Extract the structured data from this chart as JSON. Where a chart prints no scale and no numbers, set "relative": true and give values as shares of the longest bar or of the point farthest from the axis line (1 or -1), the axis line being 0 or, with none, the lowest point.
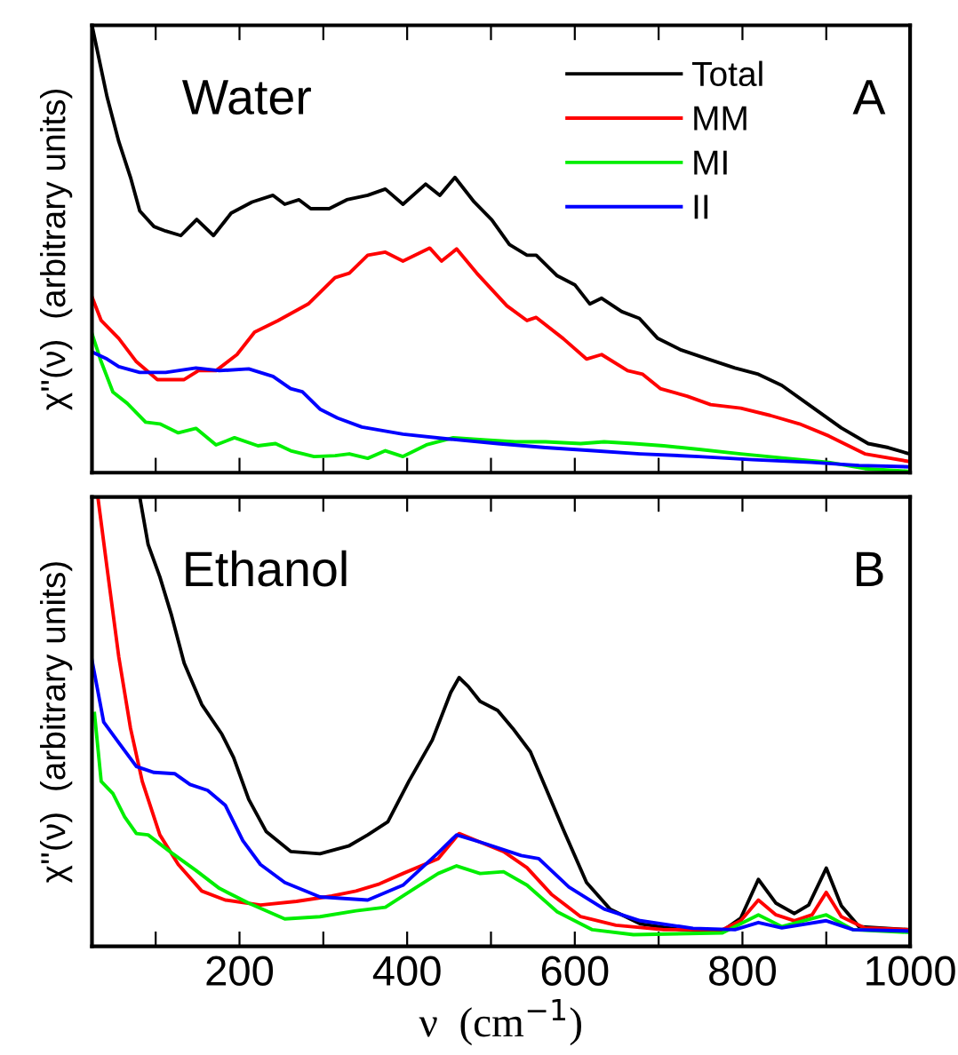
{
  "chart_data": [
    {
      "type": "line",
      "relative": true,
      "ylabel": "χ''(ν)  (arbitrary units)",
      "annotations": [
        "Water",
        "A"
      ],
      "legend": "top right",
      "tick_labels": false,
      "xlim": [
        24,
        1000
      ],
      "xticks": [
        {
          "value": 100,
          "label": null
        },
        {
          "value": 200,
          "label": null
        },
        {
          "value": 300,
          "label": null
        },
        {
          "value": 400,
          "label": null
        },
        {
          "value": 500,
          "label": null
        },
        {
          "value": 600,
          "label": null
        },
        {
          "value": 700,
          "label": null
        },
        {
          "value": 800,
          "label": null
        },
        {
          "value": 900,
          "label": null
        },
        {
          "value": 1000,
          "label": null
        }
      ],
      "series": [
        {
          "name": "Total",
          "color": "#000000",
          "x": [
            24,
            42,
            56,
            70,
            81,
            98,
            112,
            130,
            149,
            169,
            190,
            215,
            240,
            254,
            271,
            285,
            307,
            328,
            353,
            374,
            395,
            422,
            439,
            457,
            480,
            501,
            522,
            543,
            554,
            579,
            600,
            618,
            632,
            656,
            677,
            699,
            727,
            759,
            791,
            819,
            847,
            882,
            918,
            950,
            974,
            999
          ],
          "values": [
            1.0,
            0.84,
            0.74,
            0.66,
            0.585,
            0.55,
            0.54,
            0.53,
            0.566,
            0.53,
            0.58,
            0.605,
            0.62,
            0.6,
            0.61,
            0.59,
            0.59,
            0.61,
            0.62,
            0.634,
            0.6,
            0.645,
            0.62,
            0.66,
            0.605,
            0.565,
            0.51,
            0.486,
            0.486,
            0.44,
            0.42,
            0.377,
            0.39,
            0.36,
            0.345,
            0.3,
            0.274,
            0.254,
            0.234,
            0.22,
            0.195,
            0.148,
            0.1,
            0.065,
            0.056,
            0.042
          ]
        },
        {
          "name": "MM",
          "color": "#ff0000",
          "x": [
            24,
            35,
            56,
            77,
            102,
            134,
            151,
            172,
            197,
            218,
            246,
            282,
            314,
            331,
            353,
            374,
            395,
            427,
            441,
            459,
            483,
            519,
            543,
            554,
            586,
            614,
            632,
            663,
            681,
            702,
            734,
            762,
            798,
            833,
            868,
            903,
            946,
            999
          ],
          "values": [
            0.393,
            0.34,
            0.3,
            0.248,
            0.208,
            0.208,
            0.228,
            0.228,
            0.264,
            0.314,
            0.34,
            0.377,
            0.436,
            0.446,
            0.486,
            0.493,
            0.473,
            0.502,
            0.473,
            0.5,
            0.446,
            0.373,
            0.34,
            0.347,
            0.3,
            0.254,
            0.264,
            0.228,
            0.22,
            0.188,
            0.171,
            0.152,
            0.144,
            0.128,
            0.109,
            0.082,
            0.042,
            0.025
          ]
        },
        {
          "name": "MI",
          "color": "#00ee00",
          "x": [
            24,
            35,
            49,
            66,
            88,
            105,
            127,
            148,
            172,
            194,
            222,
            243,
            261,
            289,
            314,
            331,
            353,
            374,
            395,
            423,
            455,
            494,
            529,
            565,
            607,
            635,
            670,
            706,
            748,
            798,
            847,
            903,
            946,
            999
          ],
          "values": [
            0.311,
            0.248,
            0.18,
            0.155,
            0.113,
            0.109,
            0.089,
            0.099,
            0.062,
            0.078,
            0.06,
            0.065,
            0.049,
            0.036,
            0.038,
            0.042,
            0.032,
            0.049,
            0.036,
            0.062,
            0.078,
            0.073,
            0.069,
            0.069,
            0.065,
            0.069,
            0.065,
            0.06,
            0.052,
            0.042,
            0.033,
            0.023,
            0.009,
            0.003
          ]
        },
        {
          "name": "II",
          "color": "#0000ff",
          "x": [
            24,
            42,
            56,
            81,
            112,
            148,
            176,
            211,
            240,
            261,
            275,
            296,
            317,
            346,
            395,
            451,
            508,
            565,
            622,
            678,
            748,
            812,
            882,
            939,
            999
          ],
          "values": [
            0.27,
            0.254,
            0.237,
            0.224,
            0.224,
            0.234,
            0.228,
            0.232,
            0.215,
            0.188,
            0.181,
            0.142,
            0.122,
            0.102,
            0.086,
            0.075,
            0.065,
            0.056,
            0.049,
            0.042,
            0.036,
            0.029,
            0.023,
            0.016,
            0.013
          ]
        }
      ]
    },
    {
      "type": "line",
      "relative": true,
      "ylabel": "χ''(ν)  (arbitrary units)",
      "xlabel": "ν  (cm$^{−1}$)",
      "annotations": [
        "Ethanol",
        "B"
      ],
      "tick_labels": "x",
      "xlim": [
        24,
        1000
      ],
      "xticks": [
        {
          "value": 100,
          "label": null
        },
        200,
        {
          "value": 300,
          "label": null
        },
        400,
        {
          "value": 500,
          "label": null
        },
        600,
        {
          "value": 700,
          "label": null
        },
        800,
        {
          "value": 900,
          "label": null
        },
        1000
      ],
      "series": [
        {
          "color": "#000000",
          "x": [
            81,
            91,
            105,
            119,
            134,
            155,
            179,
            193,
            211,
            232,
            261,
            296,
            331,
            353,
            377,
            402,
            430,
            452,
            462,
            473,
            487,
            508,
            526,
            547,
            565,
            586,
            614,
            642,
            678,
            727,
            776,
            798,
            819,
            840,
            862,
            879,
            900,
            918,
            939,
            999
          ],
          "values": [
            1.0,
            0.894,
            0.822,
            0.736,
            0.63,
            0.538,
            0.472,
            0.42,
            0.327,
            0.255,
            0.211,
            0.206,
            0.224,
            0.248,
            0.277,
            0.367,
            0.459,
            0.565,
            0.598,
            0.578,
            0.545,
            0.525,
            0.485,
            0.433,
            0.354,
            0.261,
            0.142,
            0.083,
            0.05,
            0.037,
            0.034,
            0.063,
            0.149,
            0.096,
            0.073,
            0.092,
            0.174,
            0.09,
            0.044,
            0.037
          ]
        },
        {
          "color": "#ff0000",
          "x": [
            31,
            42,
            56,
            70,
            84,
            105,
            127,
            155,
            183,
            225,
            268,
            310,
            339,
            367,
            395,
            437,
            462,
            487,
            515,
            543,
            572,
            607,
            649,
            706,
            776,
            798,
            819,
            840,
            862,
            883,
            900,
            918,
            946,
            999
          ],
          "values": [
            1.0,
            0.842,
            0.644,
            0.485,
            0.367,
            0.248,
            0.182,
            0.123,
            0.103,
            0.092,
            0.1,
            0.112,
            0.123,
            0.139,
            0.162,
            0.195,
            0.251,
            0.232,
            0.211,
            0.175,
            0.116,
            0.066,
            0.047,
            0.037,
            0.037,
            0.057,
            0.103,
            0.07,
            0.057,
            0.07,
            0.12,
            0.066,
            0.041,
            0.037
          ]
        },
        {
          "color": "#00ee00",
          "x": [
            27,
            35,
            49,
            63,
            77,
            91,
            119,
            148,
            176,
            211,
            254,
            296,
            339,
            374,
            409,
            437,
            459,
            487,
            515,
            543,
            579,
            621,
            670,
            776,
            819,
            847,
            900,
            932,
            999
          ],
          "values": [
            0.518,
            0.367,
            0.34,
            0.288,
            0.251,
            0.248,
            0.208,
            0.169,
            0.129,
            0.096,
            0.061,
            0.066,
            0.079,
            0.087,
            0.129,
            0.162,
            0.179,
            0.162,
            0.166,
            0.136,
            0.077,
            0.037,
            0.026,
            0.03,
            0.07,
            0.044,
            0.07,
            0.037,
            0.031
          ]
        },
        {
          "color": "#0000ff",
          "x": [
            24,
            38,
            56,
            77,
            98,
            123,
            141,
            162,
            183,
            204,
            225,
            254,
            296,
            353,
            395,
            437,
            459,
            494,
            536,
            557,
            593,
            635,
            678,
            741,
            791,
            819,
            847,
            900,
            932,
            999
          ],
          "values": [
            0.637,
            0.499,
            0.453,
            0.4,
            0.387,
            0.384,
            0.36,
            0.347,
            0.314,
            0.235,
            0.182,
            0.142,
            0.11,
            0.103,
            0.136,
            0.208,
            0.248,
            0.228,
            0.202,
            0.195,
            0.132,
            0.083,
            0.057,
            0.04,
            0.037,
            0.053,
            0.041,
            0.057,
            0.037,
            0.034
          ]
        }
      ]
    }
  ]
}
